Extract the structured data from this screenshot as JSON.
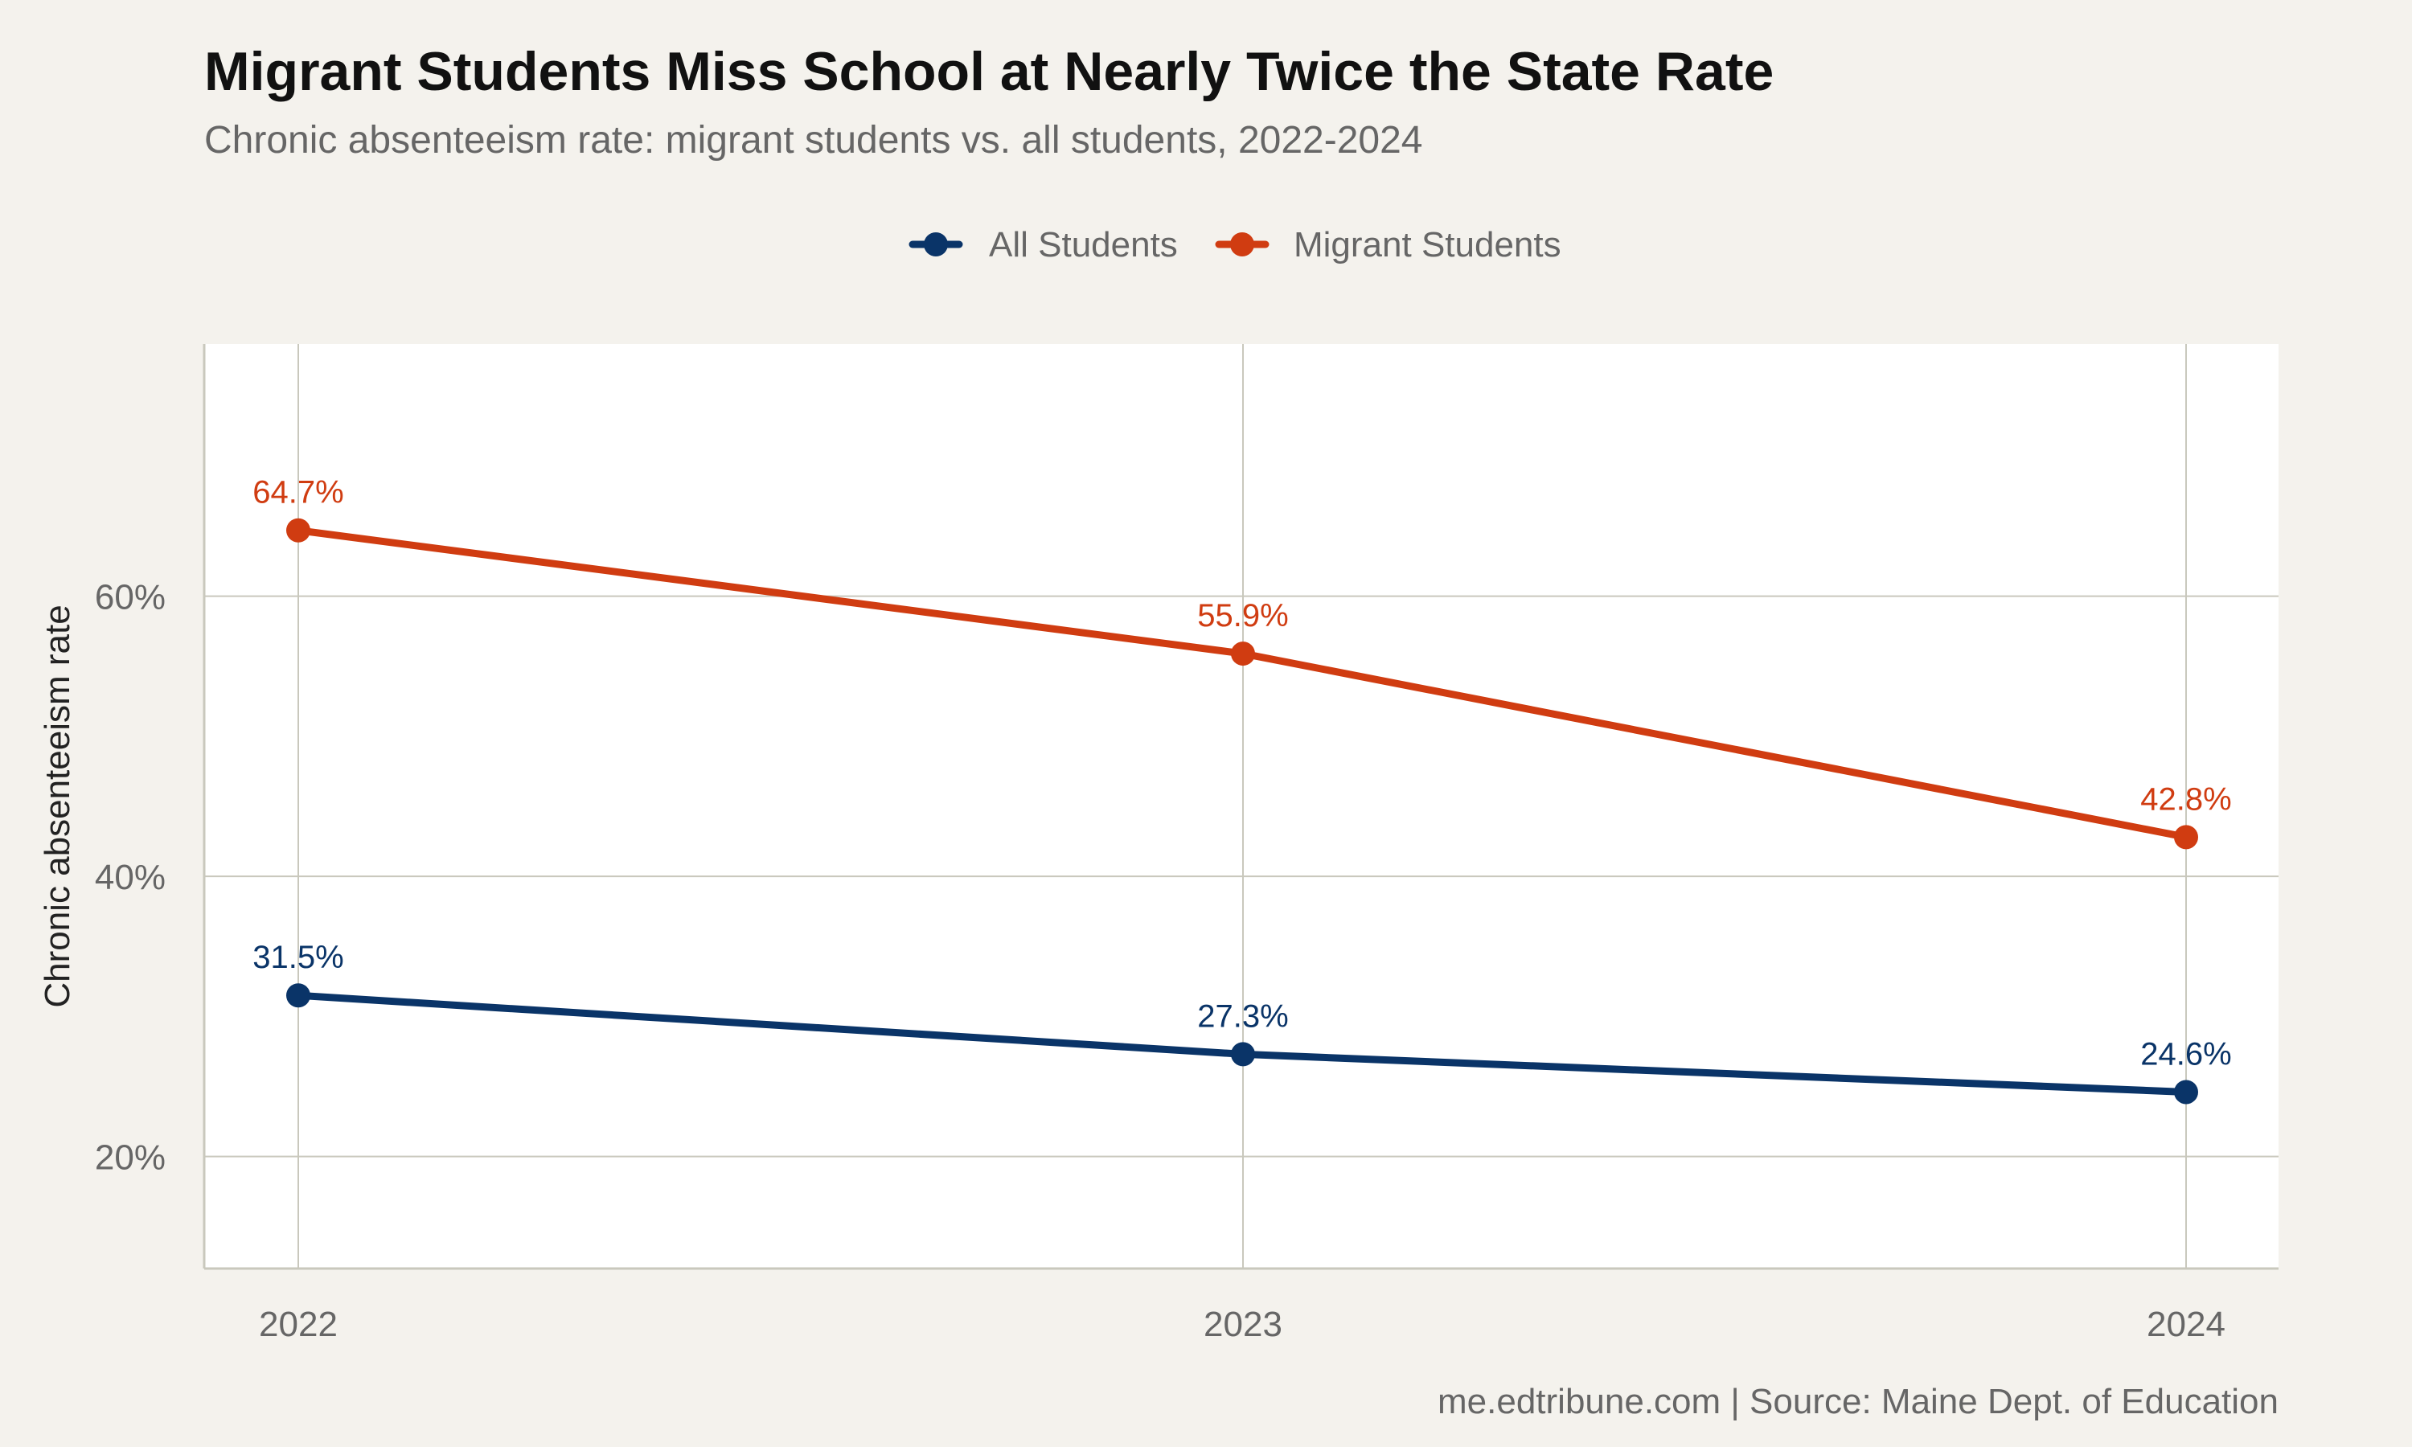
{
  "page": {
    "background_color": "#f4f2ed"
  },
  "chart_data": {
    "type": "line",
    "title": "Migrant Students Miss School at Nearly Twice the State Rate",
    "subtitle": "Chronic absenteeism rate: migrant students vs. all students, 2022-2024",
    "xlabel": "",
    "ylabel": "Chronic absenteeism rate",
    "caption": "me.edtribune.com | Source: Maine Dept. of Education",
    "x": [
      "2022",
      "2023",
      "2024"
    ],
    "x_tick_labels": [
      "2022",
      "2023",
      "2024"
    ],
    "y_ticks": [
      20,
      40,
      60
    ],
    "y_tick_labels": [
      "20%",
      "40%",
      "60%"
    ],
    "ylim": [
      12,
      78
    ],
    "grid": true,
    "legend_position": "top-center",
    "series": [
      {
        "name": "All Students",
        "color": "#0a3468",
        "values": [
          31.5,
          27.3,
          24.6
        ],
        "labels": [
          "31.5%",
          "27.3%",
          "24.6%"
        ]
      },
      {
        "name": "Migrant Students",
        "color": "#d03c11",
        "values": [
          64.7,
          55.9,
          42.8
        ],
        "labels": [
          "64.7%",
          "55.9%",
          "42.8%"
        ]
      }
    ],
    "colors": {
      "panel": "#ffffff",
      "grid": "#c9c8bd",
      "axis_text": "#666666",
      "title": "#111111",
      "subtitle": "#666666",
      "ylabel": "#222222"
    }
  }
}
